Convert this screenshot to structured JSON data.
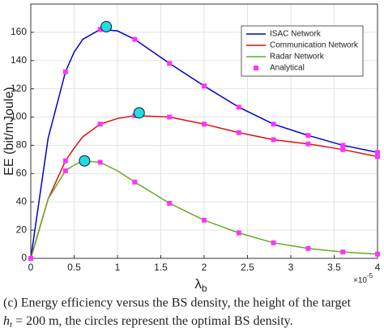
{
  "chart_data": {
    "type": "line",
    "ylabel": "EE (bit/mJoule)",
    "xlabel": "λ",
    "xlabel_sub": "b",
    "x_multiplier_base": "×10",
    "x_multiplier_exp": "-5",
    "x": [
      0,
      0.2,
      0.4,
      0.5,
      0.6,
      0.8,
      1.0,
      1.2,
      1.6,
      2.0,
      2.4,
      2.8,
      3.2,
      3.6,
      4.0
    ],
    "series": [
      {
        "name": "ISAC Network",
        "color": "#0000cc",
        "values": [
          0,
          85,
          132,
          146,
          155,
          162,
          161,
          155,
          138,
          122,
          107,
          95,
          87,
          80,
          75
        ]
      },
      {
        "name": "Communication Network",
        "color": "#dd1111",
        "values": [
          0,
          42,
          69,
          78,
          86,
          95,
          99,
          101,
          100,
          95,
          89,
          84,
          81,
          77,
          72
        ]
      },
      {
        "name": "Radar Network",
        "color": "#66aa22",
        "values": [
          0,
          42,
          62,
          66,
          69,
          68,
          62,
          54,
          39,
          27,
          18,
          11,
          7,
          4.5,
          3
        ]
      }
    ],
    "markers": {
      "name": "Analytical",
      "color": "#ff33ff",
      "x": [
        0,
        0.4,
        0.8,
        1.2,
        1.6,
        2.0,
        2.4,
        2.8,
        3.2,
        3.6,
        4.0
      ],
      "series_values": [
        [
          0,
          132,
          162,
          155,
          138,
          122,
          107,
          95,
          87,
          80,
          75
        ],
        [
          0,
          69,
          95,
          101,
          100,
          95,
          89,
          84,
          81,
          77,
          72
        ],
        [
          0,
          62,
          68,
          54,
          39,
          27,
          18,
          11,
          7,
          4.5,
          3
        ]
      ]
    },
    "optima": {
      "color": "#22dddd",
      "x": [
        0.87,
        1.25,
        0.62
      ],
      "values": [
        164,
        103,
        69
      ]
    },
    "xlim": [
      0,
      4
    ],
    "ylim": [
      0,
      180
    ],
    "xticks": [
      0,
      0.5,
      1,
      1.5,
      2,
      2.5,
      3,
      3.5,
      4
    ],
    "yticks": [
      0,
      20,
      40,
      60,
      80,
      100,
      120,
      140,
      160
    ],
    "grid": true,
    "legend": "upper-right",
    "caption_line1": "(c) Energy efficiency versus the BS density, the height of the target",
    "caption_h": "h",
    "caption_sub": "t",
    "caption_rest": " = 200 m, the circles represent the optimal BS density."
  }
}
